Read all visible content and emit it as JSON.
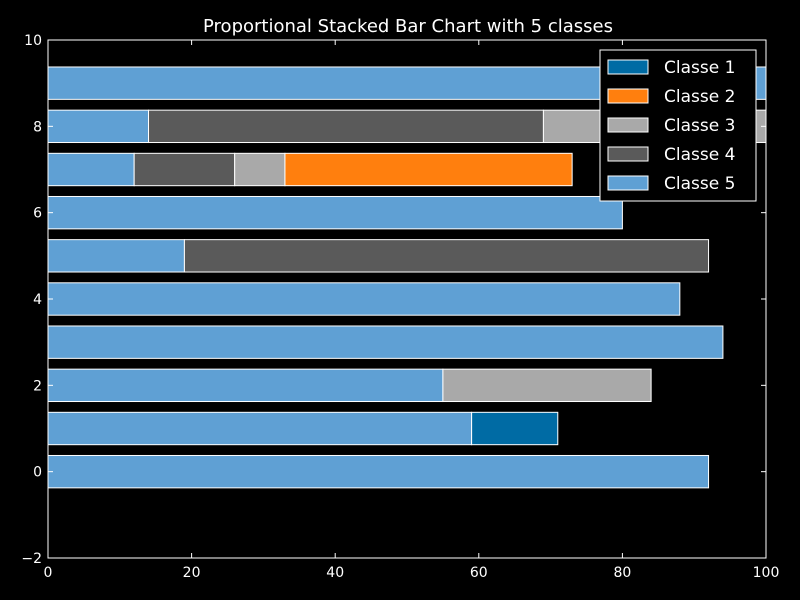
{
  "chart_data": {
    "type": "bar",
    "orientation": "horizontal",
    "stacked": true,
    "title": "Proportional Stacked Bar Chart with 5 classes",
    "xlabel": "",
    "ylabel": "",
    "xlim": [
      0,
      100
    ],
    "ylim": [
      -2,
      10
    ],
    "xticks": [
      0,
      20,
      40,
      60,
      80,
      100
    ],
    "yticks": [
      -2,
      0,
      2,
      4,
      6,
      8,
      10
    ],
    "grid": false,
    "legend_position": "top-right",
    "categories": [
      0,
      1,
      2,
      3,
      4,
      5,
      6,
      7,
      8,
      9
    ],
    "series": [
      {
        "name": "Classe 5",
        "color": "#5fa0d4",
        "values": [
          92,
          59,
          55,
          94,
          88,
          19,
          80,
          12,
          14,
          100
        ]
      },
      {
        "name": "Classe 4",
        "color": "#5a5a5a",
        "values": [
          0,
          0,
          0,
          0,
          0,
          73,
          0,
          14,
          55,
          0
        ]
      },
      {
        "name": "Classe 3",
        "color": "#a9a9a9",
        "values": [
          0,
          0,
          29,
          0,
          0,
          0,
          0,
          7,
          31,
          0
        ]
      },
      {
        "name": "Classe 2",
        "color": "#ff7f0e",
        "values": [
          0,
          0,
          0,
          0,
          0,
          0,
          0,
          40,
          0,
          0
        ]
      },
      {
        "name": "Classe 1",
        "color": "#006ba4",
        "values": [
          0,
          12,
          0,
          0,
          0,
          0,
          0,
          0,
          0,
          0
        ]
      }
    ],
    "legend_order": [
      "Classe 1",
      "Classe 2",
      "Classe 3",
      "Classe 4",
      "Classe 5"
    ]
  },
  "colors": {
    "background": "#000000",
    "axes": "#ffffff",
    "bar_edge": "#ffffff",
    "text": "#ffffff"
  }
}
